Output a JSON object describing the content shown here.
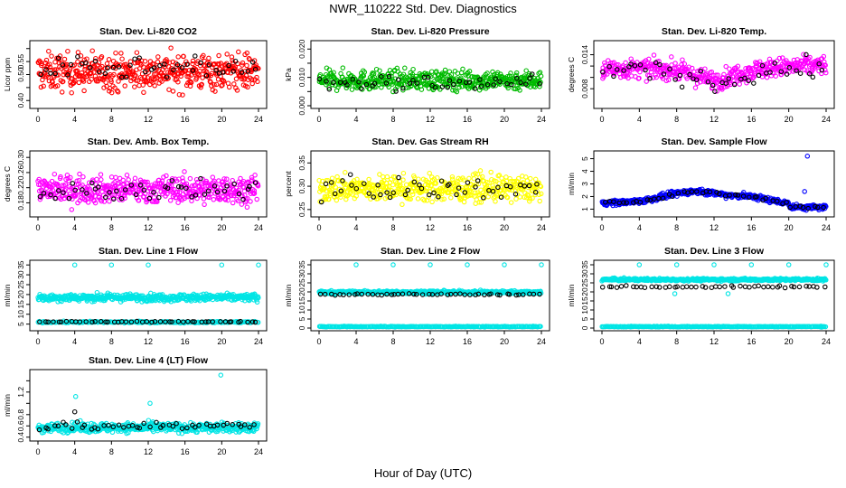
{
  "figure": {
    "title": "NWR_110222 Std. Dev. Diagnostics",
    "x_label": "Hour of Day (UTC)"
  },
  "chart_data": [
    {
      "type": "scatter",
      "title": "Stan. Dev. Li-820 CO2",
      "ylabel": "Licor ppm",
      "xlim": [
        0,
        24
      ],
      "ylim": [
        0.38,
        0.62
      ],
      "xticks": [
        0,
        4,
        8,
        12,
        16,
        20,
        24
      ],
      "yticks": [
        0.4,
        0.45,
        0.5,
        0.55,
        0.6
      ],
      "ytick_labels": [
        "0.40",
        "",
        "0.50",
        "0.55",
        ""
      ],
      "series": [
        {
          "color": "#ff0000",
          "count": 480,
          "base": 0.51,
          "spread": 0.05,
          "min": 0.38,
          "max": 0.62,
          "trend": "flat"
        },
        {
          "color": "#000000",
          "count": 48,
          "base": 0.52,
          "spread": 0.03,
          "min": 0.45,
          "max": 0.6,
          "trend": "flat"
        }
      ]
    },
    {
      "type": "scatter",
      "title": "Stan. Dev. Li-820 Pressure",
      "ylabel": "kPa",
      "xlim": [
        0,
        24
      ],
      "ylim": [
        0.0,
        0.022
      ],
      "xticks": [
        0,
        4,
        8,
        12,
        16,
        20,
        24
      ],
      "yticks": [
        0.0,
        0.005,
        0.01,
        0.015,
        0.02
      ],
      "ytick_labels": [
        "0.000",
        "",
        "0.010",
        "",
        "0.020"
      ],
      "series": [
        {
          "color": "#00bb00",
          "count": 480,
          "base": 0.009,
          "spread": 0.0025,
          "min": 0.001,
          "max": 0.021,
          "trend": "flat"
        },
        {
          "color": "#000000",
          "count": 48,
          "base": 0.008,
          "spread": 0.002,
          "min": 0.003,
          "max": 0.014,
          "trend": "flat"
        }
      ]
    },
    {
      "type": "scatter",
      "title": "Stan. Dev. Li-820 Temp.",
      "ylabel": "degrees C",
      "xlim": [
        0,
        24
      ],
      "ylim": [
        0.005,
        0.016
      ],
      "xticks": [
        0,
        4,
        8,
        12,
        16,
        20,
        24
      ],
      "yticks": [
        0.008,
        0.01,
        0.012,
        0.014
      ],
      "ytick_labels": [
        "0.008",
        "",
        "",
        "0.014"
      ],
      "series": [
        {
          "color": "#ff00ff",
          "count": 480,
          "base": 0.0115,
          "spread": 0.0012,
          "min": 0.006,
          "max": 0.0158,
          "trend": "dip"
        },
        {
          "color": "#000000",
          "count": 48,
          "base": 0.011,
          "spread": 0.0012,
          "min": 0.0075,
          "max": 0.0145,
          "trend": "dip"
        }
      ]
    },
    {
      "type": "scatter",
      "title": "Stan. Dev. Amb. Box Temp.",
      "ylabel": "degrees C",
      "xlim": [
        0,
        24
      ],
      "ylim": [
        0.15,
        0.31
      ],
      "xticks": [
        0,
        4,
        8,
        12,
        16,
        20,
        24
      ],
      "yticks": [
        0.18,
        0.22,
        0.26,
        0.3
      ],
      "ytick_labels": [
        "0.18",
        "0.22",
        "0.26",
        "0.30"
      ],
      "series": [
        {
          "color": "#ff00ff",
          "count": 480,
          "base": 0.215,
          "spread": 0.025,
          "min": 0.16,
          "max": 0.31,
          "trend": "flat"
        },
        {
          "color": "#000000",
          "count": 48,
          "base": 0.21,
          "spread": 0.02,
          "min": 0.16,
          "max": 0.26,
          "trend": "flat"
        }
      ]
    },
    {
      "type": "scatter",
      "title": "Stan. Dev. Gas Stream RH",
      "ylabel": "percent",
      "xlim": [
        0,
        24
      ],
      "ylim": [
        0.24,
        0.37
      ],
      "xticks": [
        0,
        4,
        8,
        12,
        16,
        20,
        24
      ],
      "yticks": [
        0.25,
        0.3,
        0.35
      ],
      "ytick_labels": [
        "0.25",
        "0.30",
        "0.35"
      ],
      "series": [
        {
          "color": "#ffff00",
          "count": 480,
          "base": 0.295,
          "spread": 0.02,
          "min": 0.245,
          "max": 0.37,
          "trend": "flat"
        },
        {
          "color": "#000000",
          "count": 48,
          "base": 0.295,
          "spread": 0.015,
          "min": 0.26,
          "max": 0.345,
          "trend": "flat"
        }
      ]
    },
    {
      "type": "scatter",
      "title": "Stan. Dev. Sample Flow",
      "ylabel": "ml/min",
      "xlim": [
        0,
        24
      ],
      "ylim": [
        0.6,
        5.4
      ],
      "xticks": [
        0,
        4,
        8,
        12,
        16,
        20,
        24
      ],
      "yticks": [
        1,
        2,
        3,
        4,
        5
      ],
      "ytick_labels": [
        "1",
        "2",
        "3",
        "4",
        "5"
      ],
      "series": [
        {
          "color": "#0000ff",
          "count": 480,
          "base": 1.5,
          "spread": 0.15,
          "min": 0.8,
          "max": 2.6,
          "trend": "hump"
        },
        {
          "color": "#000000",
          "count": 48,
          "base": 1.5,
          "spread": 0.1,
          "min": 0.8,
          "max": 2.4,
          "trend": "hump"
        }
      ],
      "outliers": [
        {
          "x": 22.0,
          "y": 5.2,
          "color": "#0000ff"
        },
        {
          "x": 21.7,
          "y": 2.4,
          "color": "#0000ff"
        }
      ]
    },
    {
      "type": "scatter",
      "title": "Stan. Dev. Line 1 Flow",
      "ylabel": "ml/min",
      "xlim": [
        0,
        24
      ],
      "ylim": [
        3,
        36
      ],
      "xticks": [
        0,
        4,
        8,
        12,
        16,
        20,
        24
      ],
      "yticks": [
        5,
        10,
        15,
        20,
        25,
        30,
        35
      ],
      "ytick_labels": [
        "5",
        "10",
        "15",
        "20",
        "25",
        "30",
        "35"
      ],
      "series": [
        {
          "color": "#00e5e5",
          "count": 480,
          "base": 18.5,
          "spread": 1.3,
          "min": 14.5,
          "max": 22.0,
          "trend": "flat"
        },
        {
          "color": "#00e5e5",
          "count": 200,
          "base": 6.0,
          "spread": 0.3,
          "min": 5.2,
          "max": 6.8,
          "trend": "flat"
        },
        {
          "color": "#000000",
          "count": 48,
          "base": 6.2,
          "spread": 0.2,
          "min": 5.6,
          "max": 7.2,
          "trend": "flat"
        }
      ],
      "outliers": [
        {
          "x": 4.0,
          "y": 35,
          "color": "#00e5e5"
        },
        {
          "x": 8.0,
          "y": 35,
          "color": "#00e5e5"
        },
        {
          "x": 12.0,
          "y": 35,
          "color": "#00e5e5"
        },
        {
          "x": 20.0,
          "y": 35,
          "color": "#00e5e5"
        },
        {
          "x": 24.0,
          "y": 35,
          "color": "#00e5e5"
        }
      ]
    },
    {
      "type": "scatter",
      "title": "Stan. Dev. Line 2 Flow",
      "ylabel": "ml/min",
      "xlim": [
        0,
        24
      ],
      "ylim": [
        0,
        36
      ],
      "xticks": [
        0,
        4,
        8,
        12,
        16,
        20,
        24
      ],
      "yticks": [
        0,
        5,
        10,
        15,
        20,
        25,
        30,
        35
      ],
      "ytick_labels": [
        "0",
        "5",
        "10",
        "15",
        "20",
        "25",
        "30",
        "35"
      ],
      "series": [
        {
          "color": "#00e5e5",
          "count": 480,
          "base": 19.8,
          "spread": 0.6,
          "min": 17.0,
          "max": 23.0,
          "trend": "flat"
        },
        {
          "color": "#00e5e5",
          "count": 240,
          "base": 0.8,
          "spread": 0.15,
          "min": 0.4,
          "max": 1.2,
          "trend": "flat"
        },
        {
          "color": "#000000",
          "count": 48,
          "base": 18.6,
          "spread": 0.3,
          "min": 17.5,
          "max": 19.5,
          "trend": "flat"
        }
      ],
      "outliers": [
        {
          "x": 4.0,
          "y": 35,
          "color": "#00e5e5"
        },
        {
          "x": 8.0,
          "y": 35,
          "color": "#00e5e5"
        },
        {
          "x": 12.0,
          "y": 35,
          "color": "#00e5e5"
        },
        {
          "x": 16.0,
          "y": 35,
          "color": "#00e5e5"
        },
        {
          "x": 20.0,
          "y": 35,
          "color": "#00e5e5"
        },
        {
          "x": 24.0,
          "y": 35,
          "color": "#00e5e5"
        }
      ]
    },
    {
      "type": "scatter",
      "title": "Stan. Dev. Line 3 Flow",
      "ylabel": "ml/min",
      "xlim": [
        0,
        24
      ],
      "ylim": [
        0,
        36
      ],
      "xticks": [
        0,
        4,
        8,
        12,
        16,
        20,
        24
      ],
      "yticks": [
        0,
        5,
        10,
        15,
        20,
        25,
        30,
        35
      ],
      "ytick_labels": [
        "0",
        "5",
        "10",
        "15",
        "20",
        "25",
        "30",
        "35"
      ],
      "series": [
        {
          "color": "#00e5e5",
          "count": 480,
          "base": 26.8,
          "spread": 0.5,
          "min": 25.0,
          "max": 28.5,
          "trend": "flat"
        },
        {
          "color": "#00e5e5",
          "count": 240,
          "base": 0.8,
          "spread": 0.15,
          "min": 0.4,
          "max": 1.2,
          "trend": "flat"
        },
        {
          "color": "#000000",
          "count": 48,
          "base": 22.8,
          "spread": 0.4,
          "min": 21.5,
          "max": 24.0,
          "trend": "flat"
        }
      ],
      "outliers": [
        {
          "x": 4.0,
          "y": 35,
          "color": "#00e5e5"
        },
        {
          "x": 8.0,
          "y": 35,
          "color": "#00e5e5"
        },
        {
          "x": 12.0,
          "y": 35,
          "color": "#00e5e5"
        },
        {
          "x": 16.0,
          "y": 35,
          "color": "#00e5e5"
        },
        {
          "x": 20.0,
          "y": 35,
          "color": "#00e5e5"
        },
        {
          "x": 24.0,
          "y": 35,
          "color": "#00e5e5"
        },
        {
          "x": 7.8,
          "y": 19,
          "color": "#00e5e5"
        },
        {
          "x": 13.5,
          "y": 19,
          "color": "#00e5e5"
        }
      ]
    },
    {
      "type": "scatter",
      "title": "Stan. Dev. Line 4 (LT) Flow",
      "ylabel": "ml/min",
      "xlim": [
        0,
        24
      ],
      "ylim": [
        0.38,
        1.55
      ],
      "xticks": [
        0,
        4,
        8,
        12,
        16,
        20,
        24
      ],
      "yticks": [
        0.4,
        0.6,
        0.8,
        1.0,
        1.2,
        1.4
      ],
      "ytick_labels": [
        "0.4",
        "0.6",
        "0.8",
        "",
        "1.2",
        ""
      ],
      "series": [
        {
          "color": "#00e5e5",
          "count": 480,
          "base": 0.57,
          "spread": 0.06,
          "min": 0.42,
          "max": 0.74,
          "trend": "flat"
        },
        {
          "color": "#000000",
          "count": 48,
          "base": 0.6,
          "spread": 0.06,
          "min": 0.45,
          "max": 0.75,
          "trend": "flat"
        }
      ],
      "outliers": [
        {
          "x": 4.1,
          "y": 1.12,
          "color": "#00e5e5"
        },
        {
          "x": 12.2,
          "y": 1.0,
          "color": "#00e5e5"
        },
        {
          "x": 19.9,
          "y": 1.5,
          "color": "#00e5e5"
        },
        {
          "x": 4.0,
          "y": 0.85,
          "color": "#000000"
        }
      ]
    }
  ]
}
